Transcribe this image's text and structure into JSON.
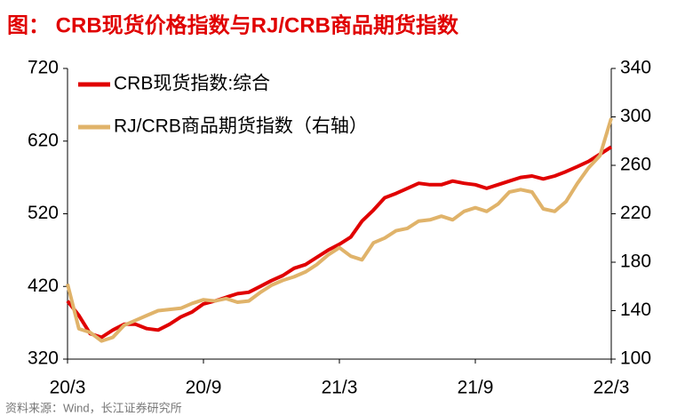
{
  "chart_data": {
    "type": "line",
    "title": "图：   CRB现货价格指数与RJ/CRB商品期货指数",
    "source": "资料来源：Wind，长江证券研究所",
    "categories": [
      "20/3",
      null,
      null,
      null,
      null,
      null,
      null,
      null,
      null,
      null,
      null,
      null,
      "20/9",
      null,
      null,
      null,
      null,
      null,
      null,
      null,
      null,
      null,
      null,
      null,
      "21/3",
      null,
      null,
      null,
      null,
      null,
      null,
      null,
      null,
      null,
      null,
      null,
      "21/9",
      null,
      null,
      null,
      null,
      null,
      null,
      null,
      null,
      null,
      null,
      null,
      "22/3"
    ],
    "series": [
      {
        "name": "CRB现货指数:综合",
        "color": "#e00000",
        "axis": "y",
        "values": [
          400,
          380,
          355,
          350,
          360,
          368,
          368,
          362,
          360,
          368,
          378,
          385,
          396,
          400,
          405,
          410,
          412,
          420,
          428,
          435,
          445,
          450,
          460,
          470,
          478,
          488,
          510,
          525,
          542,
          548,
          555,
          562,
          560,
          560,
          565,
          562,
          560,
          555,
          560,
          565,
          570,
          572,
          568,
          572,
          578,
          585,
          592,
          602,
          612
        ]
      },
      {
        "name": "RJ/CRB商品期货指数（右轴）",
        "color": "#e0b36a",
        "axis": "y2",
        "values": [
          162,
          125,
          122,
          115,
          118,
          128,
          132,
          136,
          140,
          141,
          142,
          146,
          149,
          148,
          150,
          147,
          148,
          155,
          161,
          165,
          168,
          172,
          178,
          186,
          192,
          185,
          182,
          196,
          200,
          206,
          208,
          214,
          215,
          218,
          215,
          222,
          225,
          222,
          228,
          238,
          240,
          238,
          224,
          222,
          230,
          245,
          258,
          268,
          299
        ]
      }
    ],
    "ylim": [
      320,
      720
    ],
    "yticks": [
      320,
      420,
      520,
      620,
      720
    ],
    "y2lim": [
      100,
      340
    ],
    "y2ticks": [
      100,
      140,
      180,
      220,
      260,
      300,
      340
    ]
  }
}
